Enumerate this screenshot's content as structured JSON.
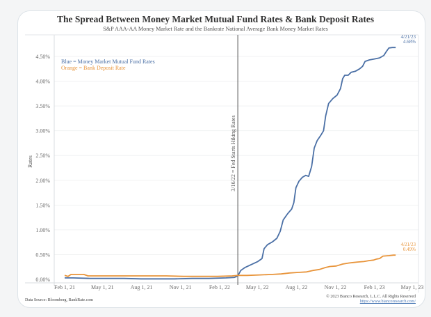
{
  "chart_data": {
    "type": "line",
    "title": "The Spread Between Money Market Mutual Fund Rates & Bank Deposit Rates",
    "subtitle": "S&P AAA-AA Money Market Rate and the Bankrate National Average Bank Money Market Rates",
    "xlabel": "",
    "ylabel": "Rates",
    "x_start_date": "2021-02-01",
    "x_unit": "days since Feb 1, 21",
    "xlim": [
      -15,
      835
    ],
    "ylim": [
      0,
      4.75
    ],
    "grid": true,
    "y_ticks": [
      {
        "value": 0.0,
        "label": "0.00%"
      },
      {
        "value": 0.5,
        "label": "0.50%"
      },
      {
        "value": 1.0,
        "label": "1.00%"
      },
      {
        "value": 1.5,
        "label": "1.50%"
      },
      {
        "value": 2.0,
        "label": "2.00%"
      },
      {
        "value": 2.5,
        "label": "2.50%"
      },
      {
        "value": 3.0,
        "label": "3.00%"
      },
      {
        "value": 3.5,
        "label": "3.50%"
      },
      {
        "value": 4.0,
        "label": "4.00%"
      },
      {
        "value": 4.5,
        "label": "4.50%"
      }
    ],
    "x_ticks": [
      {
        "value": 0,
        "label": "Feb 1, 21"
      },
      {
        "value": 89,
        "label": "May 1, 21"
      },
      {
        "value": 181,
        "label": "Aug 1, 21"
      },
      {
        "value": 273,
        "label": "Nov 1, 21"
      },
      {
        "value": 365,
        "label": "Feb 1, 22"
      },
      {
        "value": 454,
        "label": "May 1, 22"
      },
      {
        "value": 546,
        "label": "Aug 1, 22"
      },
      {
        "value": 638,
        "label": "Nov 1, 22"
      },
      {
        "value": 730,
        "label": "Feb 1, 23"
      },
      {
        "value": 819,
        "label": "May 1, 23"
      }
    ],
    "legend": {
      "placement": "top-left",
      "entries": [
        {
          "text": "Blue = Money Market Mutual Fund Rates",
          "color": "#4a6fa5"
        },
        {
          "text": "Orange = Bank Deposit Rate",
          "color": "#e8943a"
        }
      ]
    },
    "vertical_marker": {
      "x": 408,
      "label": "3/16/22 = Fed Starts Hiking Rates",
      "color": "#555555"
    },
    "series": [
      {
        "name": "Money Market Mutual Fund Rates",
        "color": "#4a6fa5",
        "end_label_date": "4/21/23",
        "end_label_value": "4.68%",
        "points": [
          [
            0,
            0.03
          ],
          [
            20,
            0.03
          ],
          [
            60,
            0.02
          ],
          [
            100,
            0.02
          ],
          [
            140,
            0.02
          ],
          [
            180,
            0.01
          ],
          [
            220,
            0.01
          ],
          [
            260,
            0.01
          ],
          [
            300,
            0.02
          ],
          [
            340,
            0.02
          ],
          [
            380,
            0.03
          ],
          [
            400,
            0.04
          ],
          [
            408,
            0.07
          ],
          [
            415,
            0.18
          ],
          [
            425,
            0.24
          ],
          [
            440,
            0.3
          ],
          [
            455,
            0.36
          ],
          [
            465,
            0.42
          ],
          [
            470,
            0.62
          ],
          [
            478,
            0.7
          ],
          [
            490,
            0.76
          ],
          [
            500,
            0.83
          ],
          [
            508,
            0.97
          ],
          [
            515,
            1.2
          ],
          [
            525,
            1.32
          ],
          [
            535,
            1.42
          ],
          [
            540,
            1.55
          ],
          [
            545,
            1.85
          ],
          [
            552,
            1.98
          ],
          [
            560,
            2.06
          ],
          [
            568,
            2.1
          ],
          [
            575,
            2.08
          ],
          [
            582,
            2.28
          ],
          [
            588,
            2.65
          ],
          [
            595,
            2.8
          ],
          [
            603,
            2.9
          ],
          [
            610,
            3.0
          ],
          [
            615,
            3.3
          ],
          [
            622,
            3.55
          ],
          [
            632,
            3.65
          ],
          [
            642,
            3.72
          ],
          [
            650,
            3.85
          ],
          [
            655,
            4.05
          ],
          [
            660,
            4.12
          ],
          [
            668,
            4.12
          ],
          [
            675,
            4.18
          ],
          [
            685,
            4.2
          ],
          [
            695,
            4.25
          ],
          [
            702,
            4.3
          ],
          [
            708,
            4.4
          ],
          [
            718,
            4.43
          ],
          [
            730,
            4.45
          ],
          [
            742,
            4.47
          ],
          [
            752,
            4.52
          ],
          [
            758,
            4.6
          ],
          [
            764,
            4.67
          ],
          [
            772,
            4.68
          ],
          [
            780,
            4.68
          ]
        ]
      },
      {
        "name": "Bank Deposit Rate",
        "color": "#e8943a",
        "end_label_date": "4/21/23",
        "end_label_value": "0.49%",
        "points": [
          [
            0,
            0.08
          ],
          [
            8,
            0.06
          ],
          [
            15,
            0.1
          ],
          [
            30,
            0.1
          ],
          [
            45,
            0.1
          ],
          [
            55,
            0.07
          ],
          [
            80,
            0.07
          ],
          [
            120,
            0.07
          ],
          [
            160,
            0.07
          ],
          [
            200,
            0.07
          ],
          [
            240,
            0.07
          ],
          [
            280,
            0.06
          ],
          [
            320,
            0.06
          ],
          [
            360,
            0.06
          ],
          [
            395,
            0.07
          ],
          [
            408,
            0.08
          ],
          [
            430,
            0.08
          ],
          [
            460,
            0.09
          ],
          [
            490,
            0.1
          ],
          [
            510,
            0.11
          ],
          [
            530,
            0.13
          ],
          [
            550,
            0.14
          ],
          [
            570,
            0.15
          ],
          [
            585,
            0.18
          ],
          [
            600,
            0.2
          ],
          [
            615,
            0.24
          ],
          [
            625,
            0.26
          ],
          [
            640,
            0.27
          ],
          [
            655,
            0.31
          ],
          [
            670,
            0.33
          ],
          [
            690,
            0.35
          ],
          [
            705,
            0.36
          ],
          [
            718,
            0.38
          ],
          [
            728,
            0.39
          ],
          [
            735,
            0.41
          ],
          [
            742,
            0.42
          ],
          [
            750,
            0.47
          ],
          [
            765,
            0.48
          ],
          [
            775,
            0.49
          ],
          [
            780,
            0.49
          ]
        ]
      }
    ]
  },
  "footer": {
    "source": "Data Source: Bloomberg, BankRate.com",
    "copyright": "© 2023 Bianco Research, L.L.C. All Rights Reserved",
    "url": "https://www.biancoresearch.com/"
  }
}
